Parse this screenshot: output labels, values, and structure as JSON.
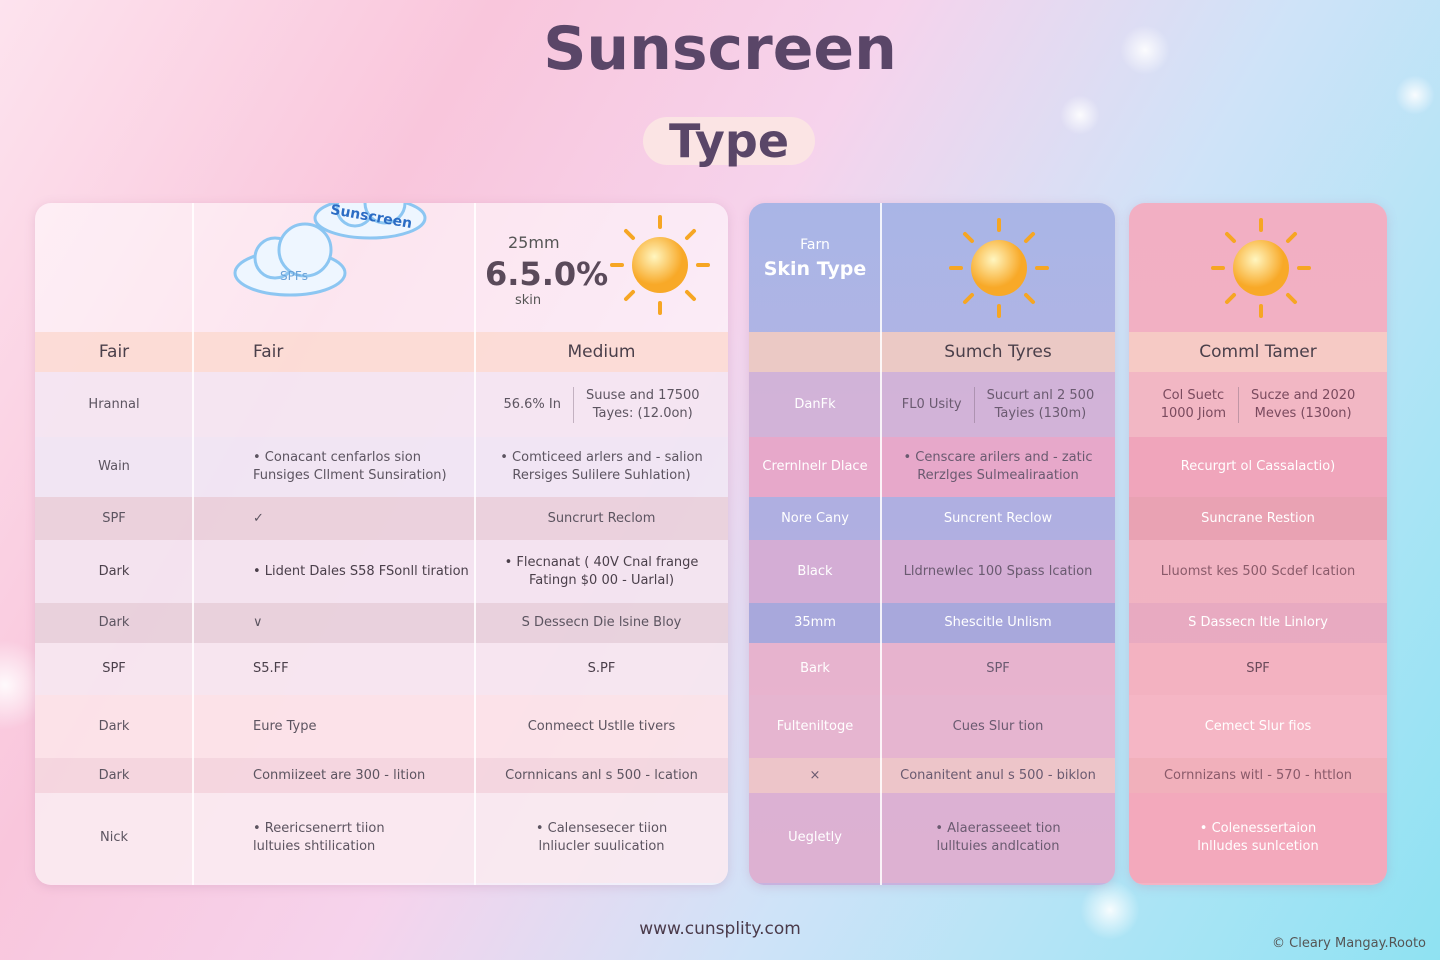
{
  "header": {
    "title": "Sunscreen",
    "subtitle": "Type"
  },
  "panels": [
    {
      "header": {
        "cloud_top": "Sunscreen",
        "cloud_bottom": "SPFs",
        "stat_top": "25mm",
        "stat_value": "6.5.0%",
        "stat_bottom": "skin"
      },
      "rows": [
        [
          "Fair",
          "Fair",
          "Medium"
        ],
        [
          "Hrannal",
          null,
          {
            "parts": [
              "56.6% In",
              [
                "Suuse and 17500",
                "Tayes: (12.0on)"
              ]
            ]
          }
        ],
        [
          "Wain",
          [
            "• Conacant cenfarlos sion",
            "Funsiges Cllment Sunsiration)"
          ],
          [
            "• Comticeed arlers and - salion",
            "Rersiges Sulilere Suhlation)"
          ]
        ],
        [
          "SPF",
          "✓",
          "Suncrurt Reclom"
        ],
        [
          "Dark",
          "• Lident Dales S58 FSonll tiration",
          [
            "• Flecnanat ( 40V Cnal frange",
            "Fatingn $0 00 - Uarlal)"
          ]
        ],
        [
          "Dark",
          "∨",
          "S Dessecn Die lsine Bloy"
        ],
        [
          "SPF",
          "S5.FF",
          "S.PF"
        ],
        [
          "Dark",
          "Eure Type",
          "Conmeect Ustlle tivers"
        ],
        [
          "Dark",
          "Conmiizeet are 300 - lition",
          "Cornnicans anl s 500 - lcation"
        ],
        [
          "Nick",
          [
            "• Reericsenerrt tiion",
            "lultuies shtilication"
          ],
          [
            "• Calensesecer tiion",
            "lnliucler suulication"
          ]
        ]
      ]
    },
    {
      "header": {
        "label_top": "Farn",
        "label": "Skin Type"
      },
      "rows": [
        [
          null,
          "Sumch Tyres"
        ],
        [
          "DanFk",
          {
            "parts": [
              "FL0 Usity",
              [
                "Sucurt anl 2 500",
                "Tayies (130m)"
              ]
            ]
          }
        ],
        [
          "Crernlnelr Dlace",
          [
            "• Censcare arilers and - zatic",
            "Rerzlges Sulmealiraation"
          ]
        ],
        [
          "Nore Cany",
          "Suncrent Reclow"
        ],
        [
          "Black",
          "Lldrnewlec 100 Spass lcation"
        ],
        [
          "35mm",
          "Shescitle Unlism"
        ],
        [
          "Bark",
          "SPF"
        ],
        [
          "Fulteniltoge",
          "Cues Slur tion"
        ],
        [
          "×",
          "Conanitent anul s 500 - biklon"
        ],
        [
          "Uegletly",
          [
            "• Alaerasseeet tion",
            "lulltuies andlcation"
          ]
        ]
      ]
    },
    {
      "rows": [
        [
          "Comml Tamer"
        ],
        [
          {
            "parts": [
              [
                "Col Suetc",
                "1000 Jiom"
              ],
              [
                "Sucze and 2020",
                "Meves (130on)"
              ]
            ]
          }
        ],
        [
          "Recurgrt ol Cassalactio)"
        ],
        [
          "Suncrane Restion"
        ],
        [
          "Lluomst kes 500 Scdef lcation"
        ],
        [
          "S Dassecn Itle Linlory"
        ],
        [
          "SPF"
        ],
        [
          "Cemect Slur fios"
        ],
        [
          "Cornnizans witl - 570 - httlon"
        ],
        [
          [
            "• Colenessertaion",
            "lnlludes sunlcetion"
          ]
        ]
      ]
    }
  ],
  "footer": {
    "url": "www.cunsplity.com",
    "credit": "© Cleary Mangay.Rooto"
  }
}
